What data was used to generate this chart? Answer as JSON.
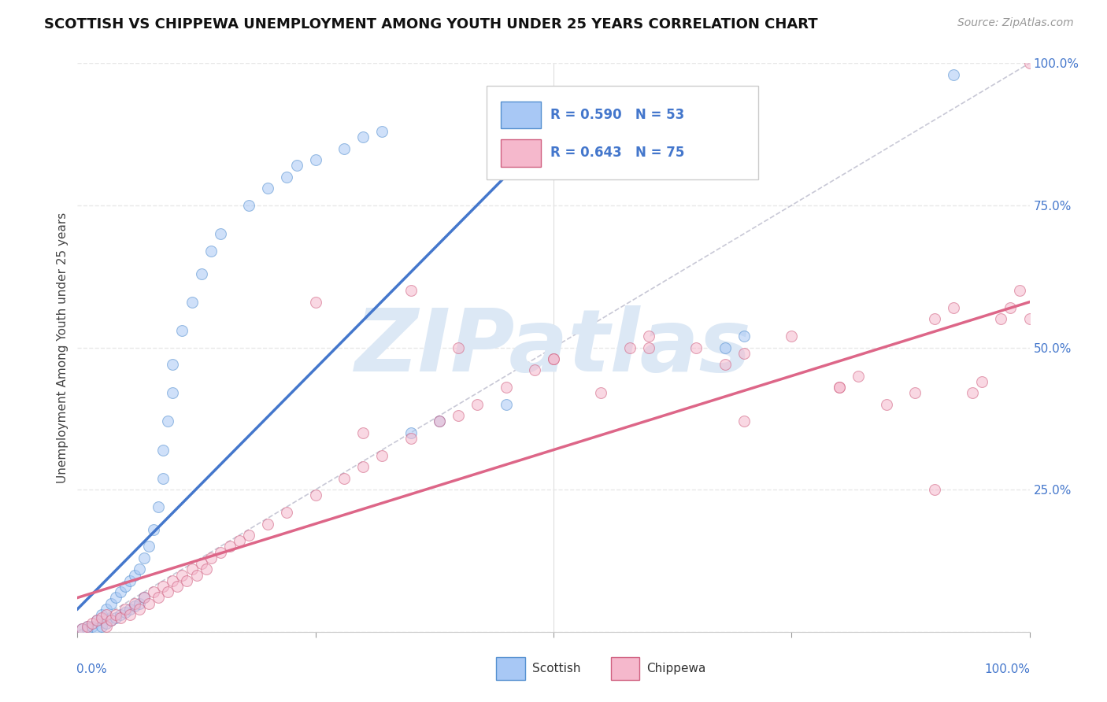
{
  "title": "SCOTTISH VS CHIPPEWA UNEMPLOYMENT AMONG YOUTH UNDER 25 YEARS CORRELATION CHART",
  "source": "Source: ZipAtlas.com",
  "ylabel": "Unemployment Among Youth under 25 years",
  "scottish_color": "#a8c8f5",
  "scottish_edge_color": "#5590d0",
  "chippewa_color": "#f5b8cc",
  "chippewa_edge_color": "#d06080",
  "scottish_line_color": "#4477cc",
  "chippewa_line_color": "#dd6688",
  "ref_line_color": "#bbbbcc",
  "background_color": "#ffffff",
  "watermark": "ZIPatlas",
  "watermark_color": "#dce8f5",
  "scottish_R": "0.590",
  "scottish_N": "53",
  "chippewa_R": "0.643",
  "chippewa_N": "75",
  "scottish_x": [
    0.005,
    0.01,
    0.01,
    0.015,
    0.02,
    0.02,
    0.025,
    0.025,
    0.03,
    0.03,
    0.035,
    0.035,
    0.04,
    0.04,
    0.045,
    0.045,
    0.05,
    0.05,
    0.055,
    0.055,
    0.06,
    0.06,
    0.065,
    0.065,
    0.07,
    0.07,
    0.075,
    0.08,
    0.085,
    0.09,
    0.09,
    0.095,
    0.1,
    0.1,
    0.11,
    0.12,
    0.13,
    0.14,
    0.15,
    0.18,
    0.2,
    0.22,
    0.23,
    0.25,
    0.28,
    0.3,
    0.32,
    0.35,
    0.38,
    0.45,
    0.68,
    0.7,
    0.92
  ],
  "scottish_y": [
    0.005,
    0.01,
    0.005,
    0.01,
    0.02,
    0.005,
    0.03,
    0.01,
    0.04,
    0.015,
    0.05,
    0.02,
    0.06,
    0.025,
    0.07,
    0.03,
    0.08,
    0.035,
    0.09,
    0.04,
    0.1,
    0.045,
    0.11,
    0.05,
    0.13,
    0.06,
    0.15,
    0.18,
    0.22,
    0.27,
    0.32,
    0.37,
    0.42,
    0.47,
    0.53,
    0.58,
    0.63,
    0.67,
    0.7,
    0.75,
    0.78,
    0.8,
    0.82,
    0.83,
    0.85,
    0.87,
    0.88,
    0.35,
    0.37,
    0.4,
    0.5,
    0.52,
    0.98
  ],
  "chippewa_x": [
    0.005,
    0.01,
    0.015,
    0.02,
    0.025,
    0.03,
    0.03,
    0.035,
    0.04,
    0.045,
    0.05,
    0.055,
    0.06,
    0.065,
    0.07,
    0.075,
    0.08,
    0.085,
    0.09,
    0.095,
    0.1,
    0.105,
    0.11,
    0.115,
    0.12,
    0.125,
    0.13,
    0.135,
    0.14,
    0.15,
    0.16,
    0.17,
    0.18,
    0.2,
    0.22,
    0.25,
    0.28,
    0.3,
    0.32,
    0.35,
    0.38,
    0.4,
    0.42,
    0.45,
    0.48,
    0.5,
    0.55,
    0.58,
    0.6,
    0.65,
    0.68,
    0.7,
    0.75,
    0.8,
    0.82,
    0.85,
    0.88,
    0.9,
    0.92,
    0.94,
    0.95,
    0.97,
    0.98,
    0.99,
    1.0,
    0.25,
    0.3,
    0.35,
    0.4,
    0.5,
    0.6,
    0.7,
    0.8,
    0.9,
    1.0
  ],
  "chippewa_y": [
    0.005,
    0.01,
    0.015,
    0.02,
    0.025,
    0.01,
    0.03,
    0.02,
    0.03,
    0.025,
    0.04,
    0.03,
    0.05,
    0.04,
    0.06,
    0.05,
    0.07,
    0.06,
    0.08,
    0.07,
    0.09,
    0.08,
    0.1,
    0.09,
    0.11,
    0.1,
    0.12,
    0.11,
    0.13,
    0.14,
    0.15,
    0.16,
    0.17,
    0.19,
    0.21,
    0.24,
    0.27,
    0.29,
    0.31,
    0.34,
    0.37,
    0.38,
    0.4,
    0.43,
    0.46,
    0.48,
    0.42,
    0.5,
    0.52,
    0.5,
    0.47,
    0.49,
    0.52,
    0.43,
    0.45,
    0.4,
    0.42,
    0.55,
    0.57,
    0.42,
    0.44,
    0.55,
    0.57,
    0.6,
    1.0,
    0.58,
    0.35,
    0.6,
    0.5,
    0.48,
    0.5,
    0.37,
    0.43,
    0.25,
    0.55
  ],
  "scottish_trend_x": [
    0.0,
    0.52
  ],
  "scottish_trend_y": [
    0.04,
    0.92
  ],
  "chippewa_trend_x": [
    0.0,
    1.0
  ],
  "chippewa_trend_y": [
    0.06,
    0.58
  ],
  "ref_line_x": [
    0.0,
    1.0
  ],
  "ref_line_y": [
    0.0,
    1.0
  ],
  "xlim": [
    0.0,
    1.0
  ],
  "ylim": [
    0.0,
    1.0
  ],
  "xticks": [
    0.0,
    0.25,
    0.5,
    0.75,
    1.0
  ],
  "yticks": [
    0.0,
    0.25,
    0.5,
    0.75,
    1.0
  ],
  "ytick_labels": [
    "",
    "25.0%",
    "50.0%",
    "75.0%",
    "100.0%"
  ],
  "grid_color": "#e8e8e8",
  "marker_size": 100,
  "marker_alpha": 0.55,
  "title_fontsize": 13,
  "axis_label_fontsize": 11,
  "tick_fontsize": 11
}
